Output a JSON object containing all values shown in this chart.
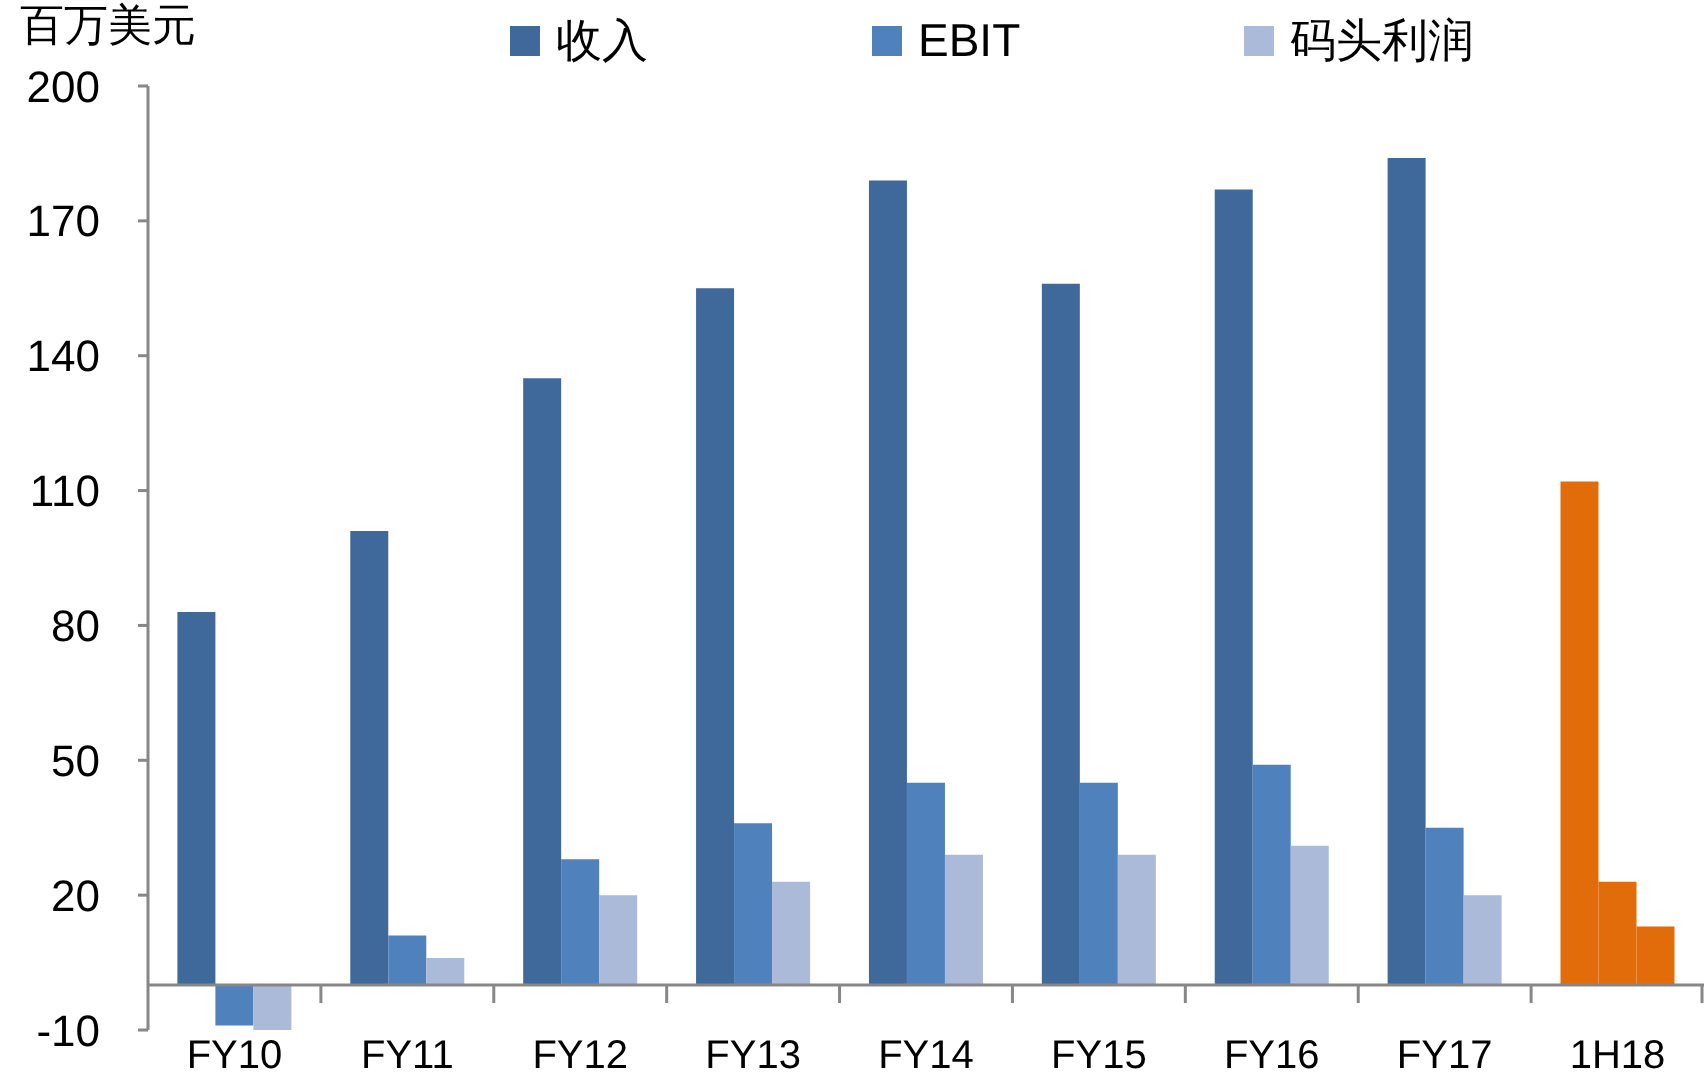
{
  "chart_data": {
    "type": "bar",
    "ylabel": "百万美元",
    "categories": [
      "FY10",
      "FY11",
      "FY12",
      "FY13",
      "FY14",
      "FY15",
      "FY16",
      "FY17",
      "1H18"
    ],
    "series": [
      {
        "name": "收入",
        "color": "#40699b",
        "colors": [
          "#40699b",
          "#40699b",
          "#40699b",
          "#40699b",
          "#40699b",
          "#40699b",
          "#40699b",
          "#40699b",
          "#e36c0a"
        ],
        "values": [
          83,
          101,
          135,
          155,
          179,
          156,
          177,
          184,
          112
        ]
      },
      {
        "name": "EBIT",
        "color": "#4f81bd",
        "colors": [
          "#4f81bd",
          "#4f81bd",
          "#4f81bd",
          "#4f81bd",
          "#4f81bd",
          "#4f81bd",
          "#4f81bd",
          "#4f81bd",
          "#e36c0a"
        ],
        "values": [
          -9,
          11,
          28,
          36,
          45,
          45,
          49,
          35,
          23
        ]
      },
      {
        "name": "码头利润",
        "color": "#abbad8",
        "colors": [
          "#abbad8",
          "#abbad8",
          "#abbad8",
          "#abbad8",
          "#abbad8",
          "#abbad8",
          "#abbad8",
          "#abbad8",
          "#e36c0a"
        ],
        "values": [
          -10,
          6,
          20,
          23,
          29,
          29,
          31,
          20,
          13
        ]
      }
    ],
    "ylim": [
      -10,
      200
    ],
    "yticks": [
      -10,
      20,
      50,
      80,
      110,
      140,
      170,
      200
    ],
    "grid": false,
    "legend": "top"
  }
}
